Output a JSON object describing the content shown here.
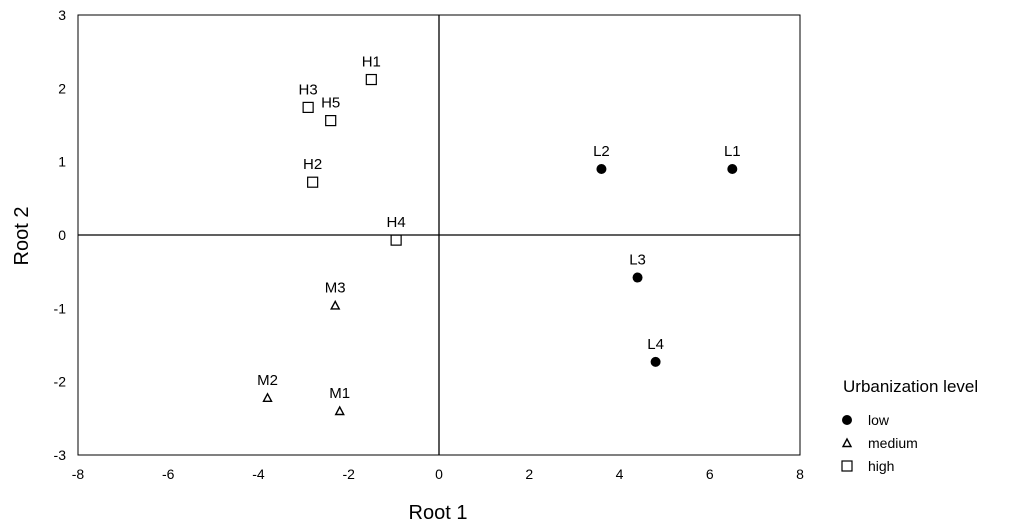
{
  "chart_data": {
    "type": "scatter",
    "xlabel": "Root 1",
    "ylabel": "Root 2",
    "xlim": [
      -8,
      8
    ],
    "ylim": [
      -3,
      3
    ],
    "xticks": [
      -8,
      -6,
      -4,
      -2,
      0,
      2,
      4,
      6,
      8
    ],
    "yticks": [
      -3,
      -2,
      -1,
      0,
      1,
      2,
      3
    ],
    "grid": false,
    "zero_lines": true,
    "legend": {
      "title": "Urbanization level",
      "placement": "right",
      "entries": [
        {
          "label": "low",
          "marker": "filled-circle"
        },
        {
          "label": "medium",
          "marker": "open-triangle"
        },
        {
          "label": "high",
          "marker": "open-square"
        }
      ]
    },
    "series": [
      {
        "name": "low",
        "marker": "filled-circle",
        "points": [
          {
            "label": "L1",
            "x": 6.5,
            "y": 0.9
          },
          {
            "label": "L2",
            "x": 3.6,
            "y": 0.9
          },
          {
            "label": "L3",
            "x": 4.4,
            "y": -0.58
          },
          {
            "label": "L4",
            "x": 4.8,
            "y": -1.73
          }
        ]
      },
      {
        "name": "medium",
        "marker": "open-triangle",
        "points": [
          {
            "label": "M1",
            "x": -2.2,
            "y": -2.4
          },
          {
            "label": "M2",
            "x": -3.8,
            "y": -2.22
          },
          {
            "label": "M3",
            "x": -2.3,
            "y": -0.96
          }
        ]
      },
      {
        "name": "high",
        "marker": "open-square",
        "points": [
          {
            "label": "H1",
            "x": -1.5,
            "y": 2.12
          },
          {
            "label": "H2",
            "x": -2.8,
            "y": 0.72
          },
          {
            "label": "H3",
            "x": -2.9,
            "y": 1.74
          },
          {
            "label": "H4",
            "x": -0.95,
            "y": -0.07
          },
          {
            "label": "H5",
            "x": -2.4,
            "y": 1.56
          }
        ]
      }
    ]
  }
}
